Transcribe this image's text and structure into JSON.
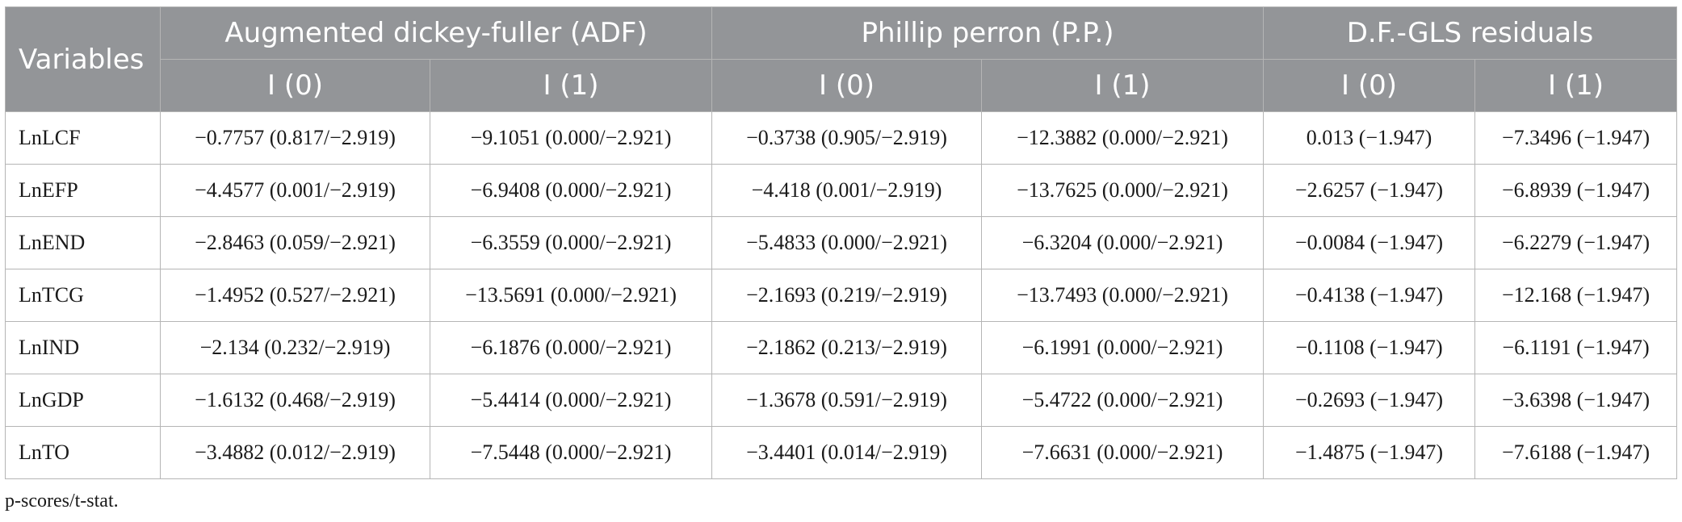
{
  "table": {
    "header": {
      "variables_label": "Variables",
      "groups": [
        "Augmented dickey-fuller (ADF)",
        "Phillip perron (P.P.)",
        "D.F.-GLS residuals"
      ],
      "subheaders": [
        "I (0)",
        "I (1)",
        "I (0)",
        "I (1)",
        "I (0)",
        "I (1)"
      ]
    },
    "rows": [
      {
        "variable": "LnLCF",
        "cells": [
          "−0.7757 (0.817/−2.919)",
          "−9.1051 (0.000/−2.921)",
          "−0.3738 (0.905/−2.919)",
          "−12.3882 (0.000/−2.921)",
          "0.013 (−1.947)",
          "−7.3496 (−1.947)"
        ]
      },
      {
        "variable": "LnEFP",
        "cells": [
          "−4.4577 (0.001/−2.919)",
          "−6.9408 (0.000/−2.921)",
          "−4.418 (0.001/−2.919)",
          "−13.7625 (0.000/−2.921)",
          "−2.6257 (−1.947)",
          "−6.8939 (−1.947)"
        ]
      },
      {
        "variable": "LnEND",
        "cells": [
          "−2.8463 (0.059/−2.921)",
          "−6.3559 (0.000/−2.921)",
          "−5.4833 (0.000/−2.921)",
          "−6.3204 (0.000/−2.921)",
          "−0.0084 (−1.947)",
          "−6.2279 (−1.947)"
        ]
      },
      {
        "variable": "LnTCG",
        "cells": [
          "−1.4952 (0.527/−2.921)",
          "−13.5691 (0.000/−2.921)",
          "−2.1693 (0.219/−2.919)",
          "−13.7493 (0.000/−2.921)",
          "−0.4138 (−1.947)",
          "−12.168 (−1.947)"
        ]
      },
      {
        "variable": "LnIND",
        "cells": [
          "−2.134 (0.232/−2.919)",
          "−6.1876 (0.000/−2.921)",
          "−2.1862 (0.213/−2.919)",
          "−6.1991 (0.000/−2.921)",
          "−0.1108 (−1.947)",
          "−6.1191 (−1.947)"
        ]
      },
      {
        "variable": "LnGDP",
        "cells": [
          "−1.6132 (0.468/−2.919)",
          "−5.4414 (0.000/−2.921)",
          "−1.3678 (0.591/−2.919)",
          "−5.4722 (0.000/−2.921)",
          "−0.2693 (−1.947)",
          "−3.6398 (−1.947)"
        ]
      },
      {
        "variable": "LnTO",
        "cells": [
          "−3.4882 (0.012/−2.919)",
          "−7.5448 (0.000/−2.921)",
          "−3.4401 (0.014/−2.919)",
          "−7.6631 (0.000/−2.921)",
          "−1.4875 (−1.947)",
          "−7.6188 (−1.947)"
        ]
      }
    ]
  },
  "footnote": "p-scores/t-stat.",
  "colors": {
    "header_bg": "#939598",
    "header_text": "#ffffff",
    "border": "#b5b5b5"
  }
}
